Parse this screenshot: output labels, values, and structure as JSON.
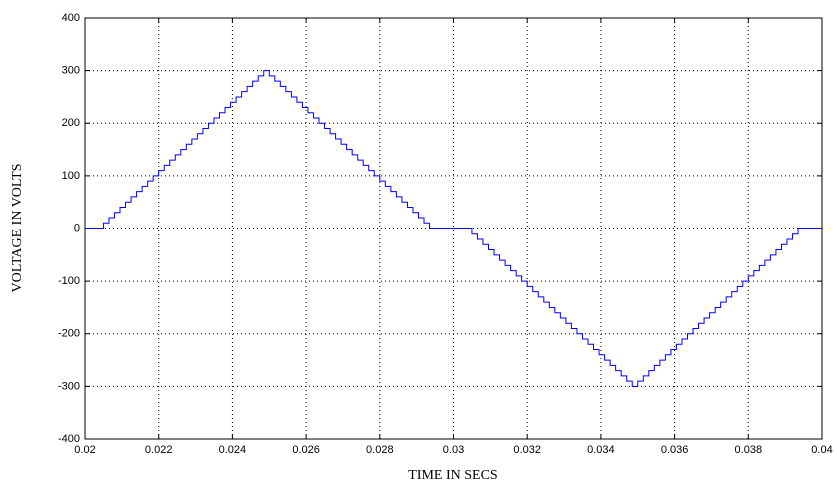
{
  "chart_data": {
    "type": "line",
    "drawstyle": "steps-post",
    "xlabel": "TIME IN SECS",
    "ylabel": "VOLTAGE IN VOLTS",
    "x": [
      0.02,
      0.0205,
      0.02065,
      0.0208,
      0.02095,
      0.0211,
      0.02125,
      0.0214,
      0.02155,
      0.0217,
      0.02185,
      0.022,
      0.02215,
      0.0223,
      0.02245,
      0.0226,
      0.02275,
      0.0229,
      0.02305,
      0.0232,
      0.02335,
      0.0235,
      0.02365,
      0.0238,
      0.02395,
      0.0241,
      0.02425,
      0.0244,
      0.02455,
      0.0247,
      0.02485,
      0.025,
      0.02515,
      0.0253,
      0.02545,
      0.0256,
      0.02575,
      0.0259,
      0.02605,
      0.0262,
      0.02635,
      0.0265,
      0.02665,
      0.0268,
      0.02695,
      0.0271,
      0.02725,
      0.0274,
      0.02755,
      0.0277,
      0.02785,
      0.028,
      0.02815,
      0.0283,
      0.02845,
      0.0286,
      0.02875,
      0.0289,
      0.02905,
      0.0292,
      0.02935,
      0.0305,
      0.03065,
      0.0308,
      0.03095,
      0.0311,
      0.03125,
      0.0314,
      0.03155,
      0.0317,
      0.03185,
      0.032,
      0.03215,
      0.0323,
      0.03245,
      0.0326,
      0.03275,
      0.0329,
      0.03305,
      0.0332,
      0.03335,
      0.0335,
      0.03365,
      0.0338,
      0.03395,
      0.0341,
      0.03425,
      0.0344,
      0.03455,
      0.0347,
      0.03485,
      0.035,
      0.03515,
      0.0353,
      0.03545,
      0.0356,
      0.03575,
      0.0359,
      0.03605,
      0.0362,
      0.03635,
      0.0365,
      0.03665,
      0.0368,
      0.03695,
      0.0371,
      0.03725,
      0.0374,
      0.03755,
      0.0377,
      0.03785,
      0.038,
      0.03815,
      0.0383,
      0.03845,
      0.0386,
      0.03875,
      0.0389,
      0.03905,
      0.0392,
      0.03935,
      0.04
    ],
    "series": [
      {
        "color": "#0000ff",
        "values": [
          0,
          10,
          20,
          30,
          40,
          50,
          60,
          70,
          80,
          90,
          100,
          110,
          120,
          130,
          140,
          150,
          160,
          170,
          180,
          190,
          200,
          210,
          220,
          230,
          240,
          250,
          260,
          270,
          280,
          290,
          300,
          290,
          280,
          270,
          260,
          250,
          240,
          230,
          220,
          210,
          200,
          190,
          180,
          170,
          160,
          150,
          140,
          130,
          120,
          110,
          100,
          90,
          80,
          70,
          60,
          50,
          40,
          30,
          20,
          10,
          0,
          -10,
          -20,
          -30,
          -40,
          -50,
          -60,
          -70,
          -80,
          -90,
          -100,
          -110,
          -120,
          -130,
          -140,
          -150,
          -160,
          -170,
          -180,
          -190,
          -200,
          -210,
          -220,
          -230,
          -240,
          -250,
          -260,
          -270,
          -280,
          -290,
          -300,
          -290,
          -280,
          -270,
          -260,
          -250,
          -240,
          -230,
          -220,
          -210,
          -200,
          -190,
          -180,
          -170,
          -160,
          -150,
          -140,
          -130,
          -120,
          -110,
          -100,
          -90,
          -80,
          -70,
          -60,
          -50,
          -40,
          -30,
          -20,
          -10,
          0,
          0
        ]
      }
    ],
    "xlim": [
      0.02,
      0.04
    ],
    "xticks": [
      0.02,
      0.022,
      0.024,
      0.026,
      0.028,
      0.03,
      0.032,
      0.034,
      0.036,
      0.038,
      0.04
    ],
    "ylim": [
      -400,
      400
    ],
    "yticks": [
      -400,
      -300,
      -200,
      -100,
      0,
      100,
      200,
      300,
      400
    ],
    "grid": true
  }
}
